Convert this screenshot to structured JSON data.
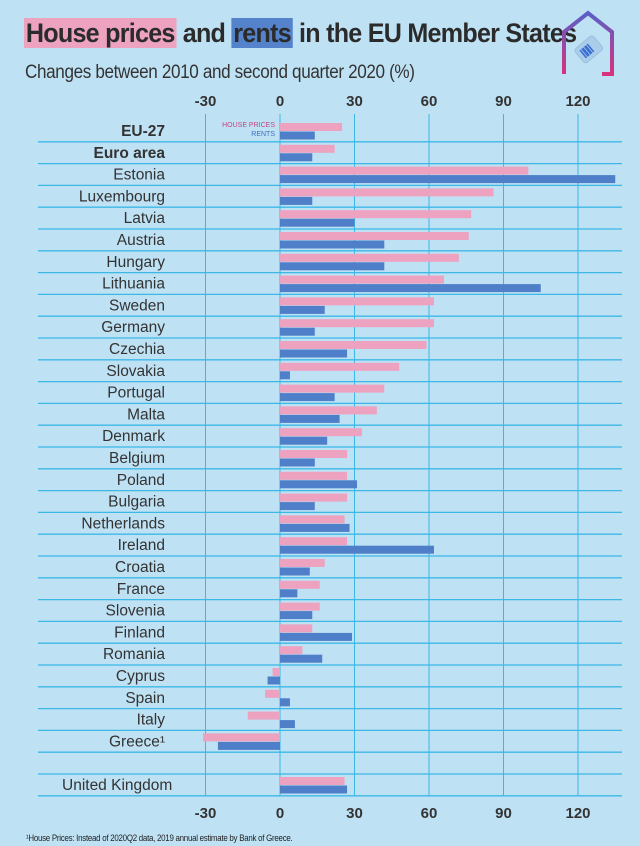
{
  "title": {
    "part1": "House prices",
    "part2": " and ",
    "part3": "rents",
    "part4": " in the EU Member States"
  },
  "subtitle": "Changes between 2010 and second quarter 2020 (%)",
  "logo_icon": "house-price-tag-icon",
  "colors": {
    "house_prices": "#eda2c0",
    "rents": "#4f7fc9",
    "background": "#bfe1f4",
    "grid": "#3bb8e6"
  },
  "footnote": "¹House Prices: Instead of 2020Q2 data, 2019 annual estimate by Bank of Greece.",
  "chart_data": {
    "type": "bar",
    "orientation": "horizontal",
    "title": "House prices and rents in the EU Member States",
    "subtitle": "Changes between 2010 and second quarter 2020 (%)",
    "xlabel": "",
    "ylabel": "",
    "xlim": [
      -30,
      135
    ],
    "xticks": [
      -30,
      0,
      30,
      60,
      90,
      120
    ],
    "xtick_labels": [
      "-30",
      "0",
      "30",
      "60",
      "90",
      "120"
    ],
    "grid": true,
    "legend": {
      "placement": "top-left-of-plot",
      "entries": [
        "HOUSE PRICES",
        "RENTS"
      ]
    },
    "categories": [
      "EU-27",
      "Euro area",
      "Estonia",
      "Luxembourg",
      "Latvia",
      "Austria",
      "Hungary",
      "Lithuania",
      "Sweden",
      "Germany",
      "Czechia",
      "Slovakia",
      "Portugal",
      "Malta",
      "Denmark",
      "Belgium",
      "Poland",
      "Bulgaria",
      "Netherlands",
      "Ireland",
      "Croatia",
      "France",
      "Slovenia",
      "Finland",
      "Romania",
      "Cyprus",
      "Spain",
      "Italy",
      "Greece¹",
      "",
      "United Kingdom"
    ],
    "bold_categories": [
      "EU-27",
      "Euro area"
    ],
    "series": [
      {
        "name": "House prices",
        "values": [
          25,
          22,
          100,
          86,
          77,
          76,
          72,
          66,
          62,
          62,
          59,
          48,
          42,
          39,
          33,
          27,
          27,
          27,
          26,
          27,
          18,
          16,
          16,
          13,
          9,
          -3,
          -6,
          -13,
          -31,
          null,
          26
        ]
      },
      {
        "name": "Rents",
        "values": [
          14,
          13,
          135,
          13,
          30,
          42,
          42,
          105,
          18,
          14,
          27,
          4,
          22,
          24,
          19,
          14,
          31,
          14,
          28,
          62,
          12,
          7,
          13,
          29,
          17,
          -5,
          4,
          6,
          -25,
          null,
          27
        ]
      }
    ]
  }
}
